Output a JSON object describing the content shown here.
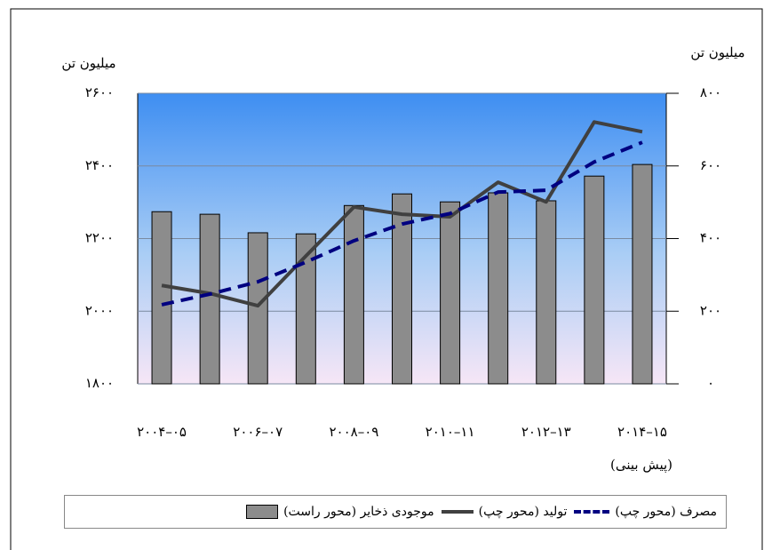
{
  "chart_data": {
    "type": "bar",
    "y_label": "میلیون تن",
    "y2_label": "میلیون تن",
    "note": "(پیش بینی)",
    "categories": [
      "۲۰۰۴–۰۵",
      null,
      "۲۰۰۶–۰۷",
      null,
      "۲۰۰۸–۰۹",
      null,
      "۲۰۱۰–۱۱",
      null,
      "۲۰۱۲–۱۳",
      null,
      "۲۰۱۴–۱۵"
    ],
    "series": [
      {
        "name": "موجودی ذخایر (محور راست)",
        "type": "bar",
        "axis": "y2",
        "color": "#8c8c8c",
        "values": [
          474,
          467,
          416,
          413,
          491,
          523,
          501,
          526,
          504,
          572,
          604
        ]
      },
      {
        "name": "تولید (محور چپ)",
        "type": "line",
        "axis": "y",
        "color": "#404040",
        "values": [
          2071,
          2049,
          2015,
          2152,
          2287,
          2267,
          2260,
          2355,
          2301,
          2521,
          2494
        ]
      },
      {
        "name": "مصرف (محور چپ)",
        "type": "line",
        "axis": "y",
        "color": "#000080",
        "dashed": true,
        "values": [
          2018,
          2047,
          2081,
          2135,
          2194,
          2240,
          2269,
          2328,
          2333,
          2411,
          2465
        ]
      }
    ],
    "ylim": [
      1800,
      2600
    ],
    "yticks": [
      {
        "value": 1800,
        "label": "۱۸۰۰"
      },
      {
        "value": 2000,
        "label": "۲۰۰۰"
      },
      {
        "value": 2200,
        "label": "۲۲۰۰"
      },
      {
        "value": 2400,
        "label": "۲۴۰۰"
      },
      {
        "value": 2600,
        "label": "۲۶۰۰"
      }
    ],
    "y2lim": [
      0,
      800
    ],
    "y2ticks": [
      {
        "value": 0,
        "label": "۰"
      },
      {
        "value": 200,
        "label": "۲۰۰"
      },
      {
        "value": 400,
        "label": "۴۰۰"
      },
      {
        "value": 600,
        "label": "۶۰۰"
      },
      {
        "value": 800,
        "label": "۸۰۰"
      }
    ],
    "grid": true
  }
}
